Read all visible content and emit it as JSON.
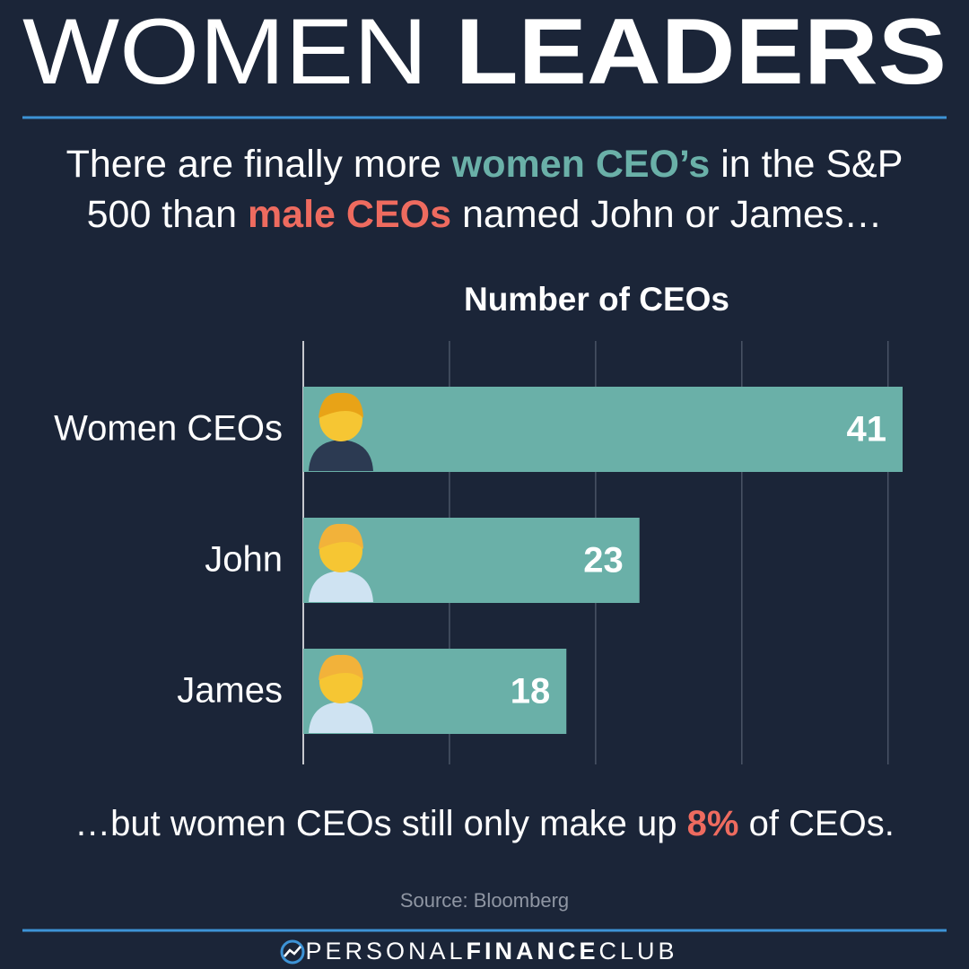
{
  "header": {
    "title": [
      "WOMEN",
      "LEADERS"
    ],
    "subtitle": [
      [
        {
          "text": "There are finally more "
        },
        {
          "text": "women CEO’s",
          "color": "#6ab0a8"
        },
        {
          "text": " in the S&P"
        }
      ],
      [
        {
          "text": "500 than "
        },
        {
          "text": "male CEOs",
          "color": "#ee6b5f"
        },
        {
          "text": " named John or James…"
        }
      ]
    ]
  },
  "chart_data": {
    "type": "bar",
    "orientation": "horizontal",
    "title": "Number of CEOs",
    "categories": [
      "Women CEOs",
      "John",
      "James"
    ],
    "values": [
      41,
      23,
      18
    ],
    "color": "#6ab0a8",
    "xlim": [
      0,
      41
    ],
    "xticks": [
      0,
      10,
      20,
      30,
      40
    ],
    "grid": true
  },
  "note": [
    {
      "text": "…but women CEOs still only make up "
    },
    {
      "text": "8%",
      "color": "#ee6b5f"
    },
    {
      "text": " of CEOs."
    }
  ],
  "source": "Source: Bloomberg",
  "footer": [
    "PERSONAL",
    "FINANCE",
    "CLUB"
  ]
}
